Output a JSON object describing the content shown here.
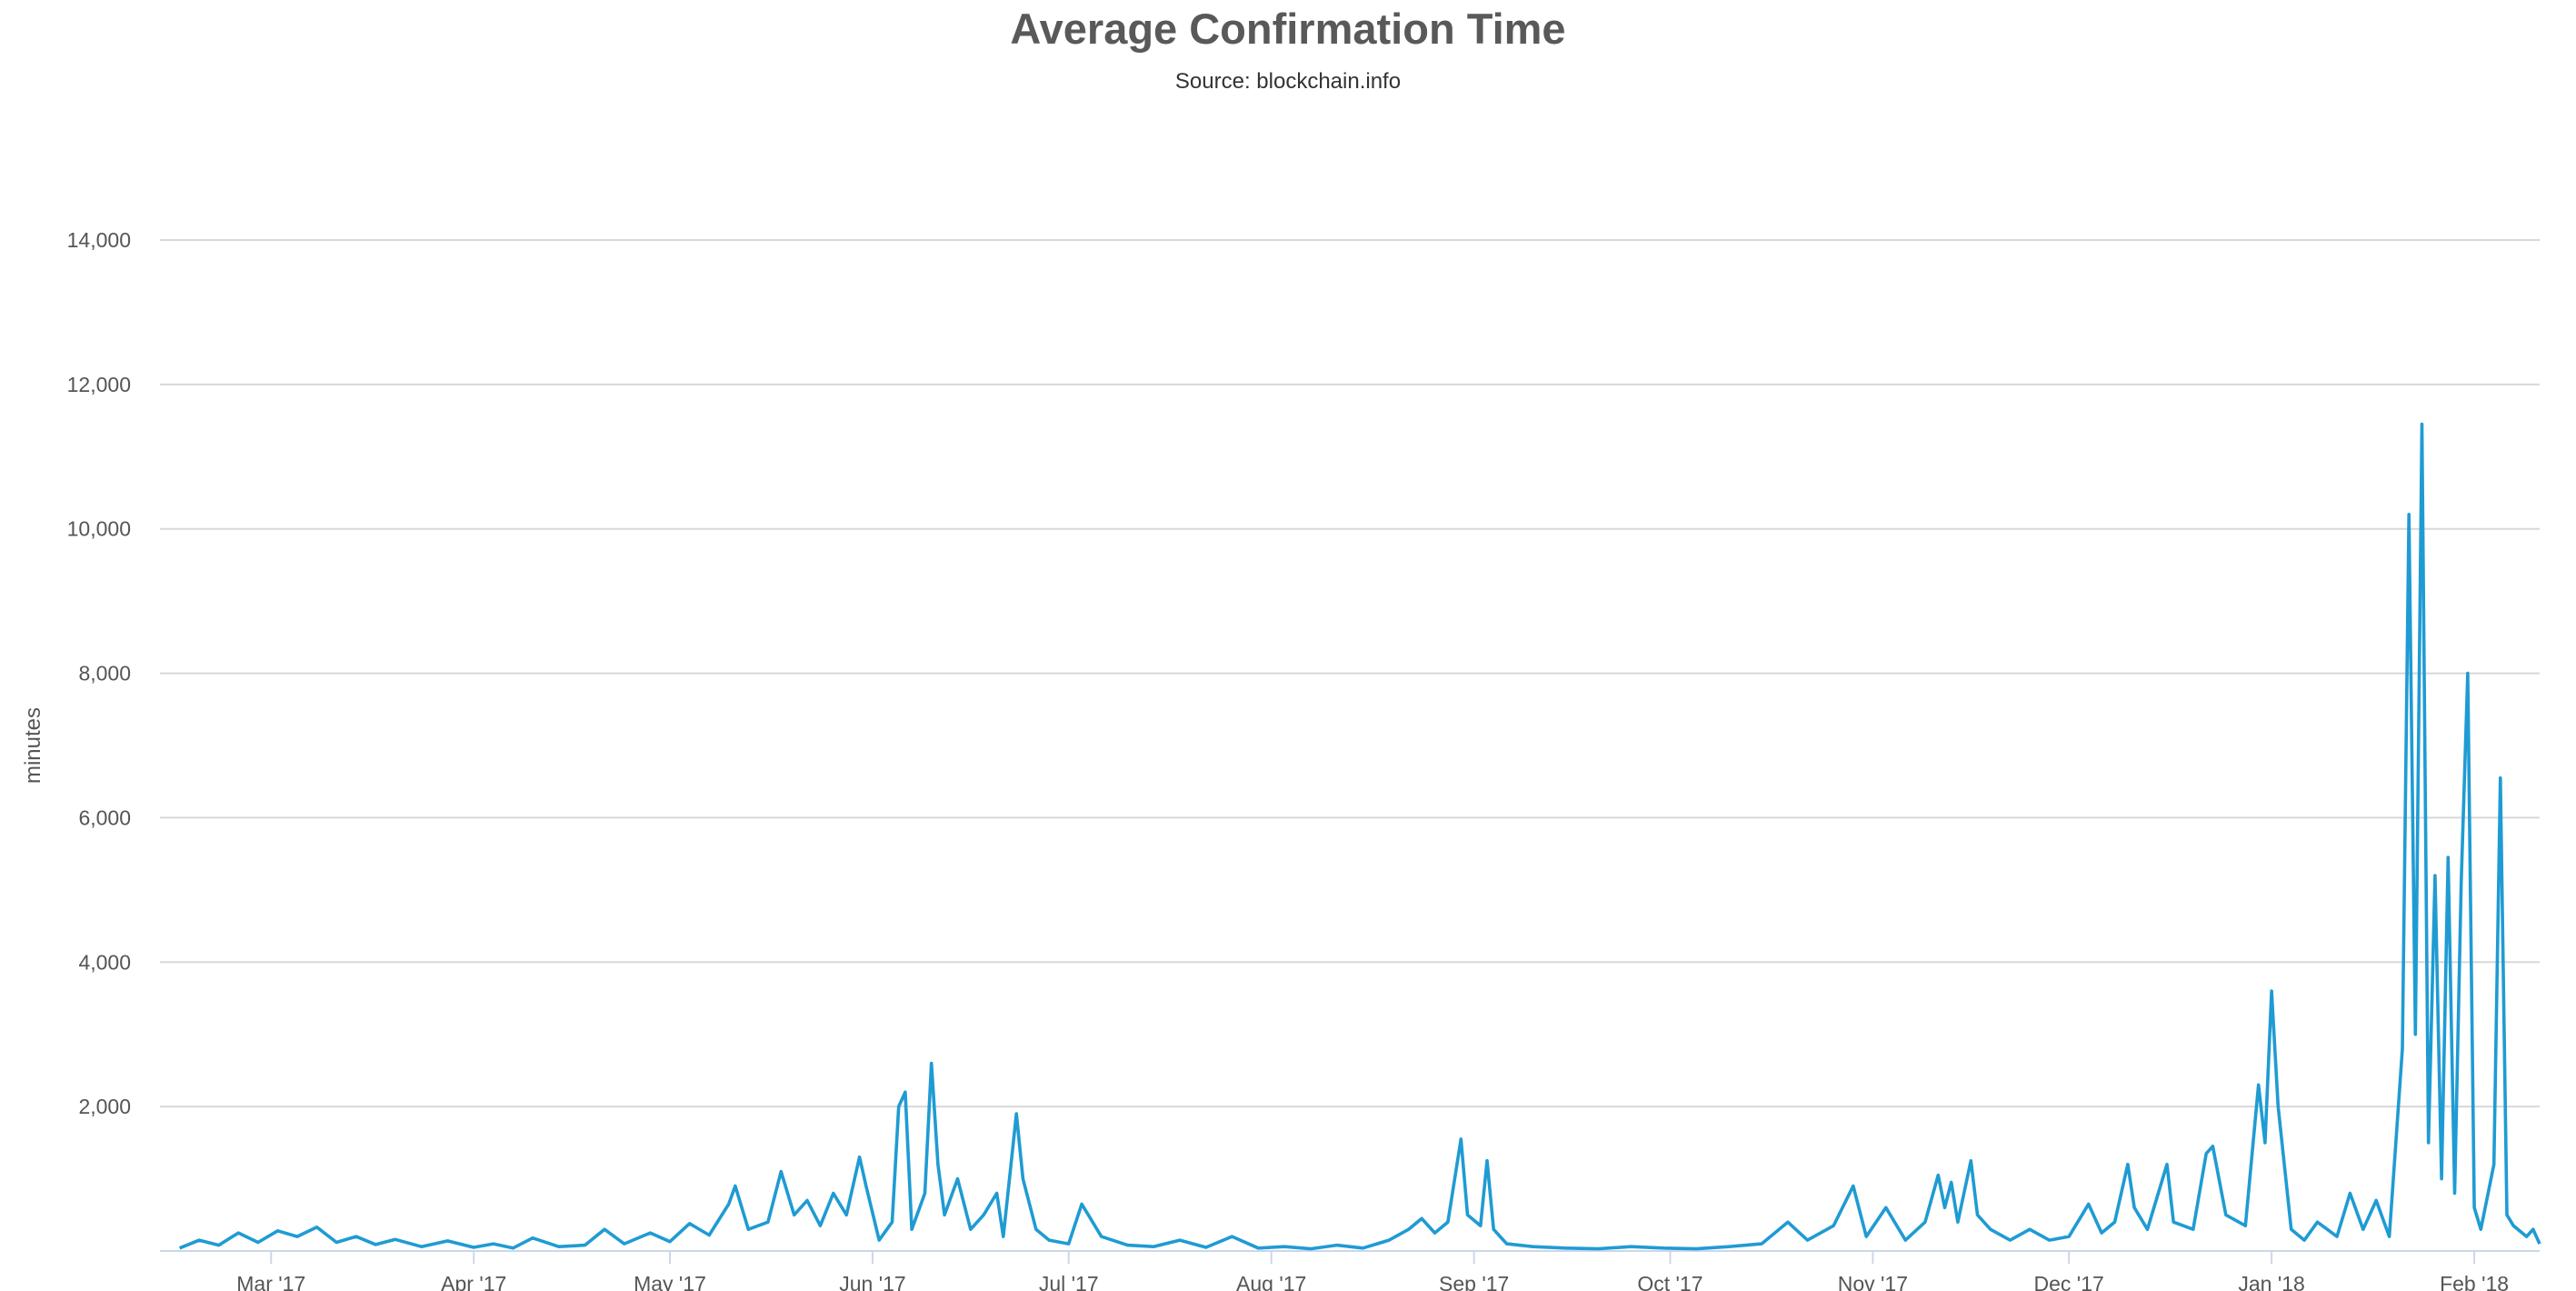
{
  "chart_data": {
    "type": "line",
    "title": "Average Confirmation Time",
    "subtitle": "Source: blockchain.info",
    "xlabel": "",
    "ylabel": "minutes",
    "ylim": [
      0,
      14000
    ],
    "xlim": [
      "2017-02-12",
      "2018-02-11"
    ],
    "grid": true,
    "legend": "none",
    "series_color": "#1f9bd3",
    "y_ticks": [
      {
        "value": 0,
        "label": ""
      },
      {
        "value": 2000,
        "label": "2,000"
      },
      {
        "value": 4000,
        "label": "4,000"
      },
      {
        "value": 6000,
        "label": "6,000"
      },
      {
        "value": 8000,
        "label": "8,000"
      },
      {
        "value": 10000,
        "label": "10,000"
      },
      {
        "value": 12000,
        "label": "12,000"
      },
      {
        "value": 14000,
        "label": "14,000"
      }
    ],
    "x_ticks": [
      {
        "date": "2017-03-01",
        "label": "Mar '17"
      },
      {
        "date": "2017-04-01",
        "label": "Apr '17"
      },
      {
        "date": "2017-05-01",
        "label": "May '17"
      },
      {
        "date": "2017-06-01",
        "label": "Jun '17"
      },
      {
        "date": "2017-07-01",
        "label": "Jul '17"
      },
      {
        "date": "2017-08-01",
        "label": "Aug '17"
      },
      {
        "date": "2017-09-01",
        "label": "Sep '17"
      },
      {
        "date": "2017-10-01",
        "label": "Oct '17"
      },
      {
        "date": "2017-11-01",
        "label": "Nov '17"
      },
      {
        "date": "2017-12-01",
        "label": "Dec '17"
      },
      {
        "date": "2018-01-01",
        "label": "Jan '18"
      },
      {
        "date": "2018-02-01",
        "label": "Feb '18"
      }
    ],
    "series": [
      {
        "points": [
          [
            "2017-02-15",
            40
          ],
          [
            "2017-02-18",
            150
          ],
          [
            "2017-02-21",
            80
          ],
          [
            "2017-02-24",
            250
          ],
          [
            "2017-02-27",
            120
          ],
          [
            "2017-03-02",
            280
          ],
          [
            "2017-03-05",
            200
          ],
          [
            "2017-03-08",
            330
          ],
          [
            "2017-03-11",
            120
          ],
          [
            "2017-03-14",
            200
          ],
          [
            "2017-03-17",
            90
          ],
          [
            "2017-03-20",
            160
          ],
          [
            "2017-03-24",
            60
          ],
          [
            "2017-03-28",
            140
          ],
          [
            "2017-04-01",
            50
          ],
          [
            "2017-04-04",
            100
          ],
          [
            "2017-04-07",
            40
          ],
          [
            "2017-04-10",
            180
          ],
          [
            "2017-04-14",
            60
          ],
          [
            "2017-04-18",
            80
          ],
          [
            "2017-04-21",
            300
          ],
          [
            "2017-04-24",
            100
          ],
          [
            "2017-04-28",
            250
          ],
          [
            "2017-05-01",
            130
          ],
          [
            "2017-05-04",
            380
          ],
          [
            "2017-05-07",
            220
          ],
          [
            "2017-05-10",
            650
          ],
          [
            "2017-05-11",
            900
          ],
          [
            "2017-05-13",
            300
          ],
          [
            "2017-05-16",
            400
          ],
          [
            "2017-05-18",
            1100
          ],
          [
            "2017-05-20",
            500
          ],
          [
            "2017-05-22",
            700
          ],
          [
            "2017-05-24",
            350
          ],
          [
            "2017-05-26",
            800
          ],
          [
            "2017-05-28",
            500
          ],
          [
            "2017-05-30",
            1300
          ],
          [
            "2017-05-31",
            900
          ],
          [
            "2017-06-02",
            150
          ],
          [
            "2017-06-04",
            400
          ],
          [
            "2017-06-05",
            2000
          ],
          [
            "2017-06-06",
            2200
          ],
          [
            "2017-06-07",
            300
          ],
          [
            "2017-06-09",
            800
          ],
          [
            "2017-06-10",
            2600
          ],
          [
            "2017-06-11",
            1200
          ],
          [
            "2017-06-12",
            500
          ],
          [
            "2017-06-14",
            1000
          ],
          [
            "2017-06-16",
            300
          ],
          [
            "2017-06-18",
            500
          ],
          [
            "2017-06-20",
            800
          ],
          [
            "2017-06-21",
            200
          ],
          [
            "2017-06-23",
            1900
          ],
          [
            "2017-06-24",
            1000
          ],
          [
            "2017-06-26",
            300
          ],
          [
            "2017-06-28",
            150
          ],
          [
            "2017-07-01",
            100
          ],
          [
            "2017-07-03",
            650
          ],
          [
            "2017-07-06",
            200
          ],
          [
            "2017-07-10",
            80
          ],
          [
            "2017-07-14",
            60
          ],
          [
            "2017-07-18",
            150
          ],
          [
            "2017-07-22",
            50
          ],
          [
            "2017-07-26",
            200
          ],
          [
            "2017-07-30",
            40
          ],
          [
            "2017-08-03",
            60
          ],
          [
            "2017-08-07",
            30
          ],
          [
            "2017-08-11",
            80
          ],
          [
            "2017-08-15",
            40
          ],
          [
            "2017-08-19",
            150
          ],
          [
            "2017-08-22",
            300
          ],
          [
            "2017-08-24",
            450
          ],
          [
            "2017-08-26",
            250
          ],
          [
            "2017-08-28",
            400
          ],
          [
            "2017-08-30",
            1550
          ],
          [
            "2017-08-31",
            500
          ],
          [
            "2017-09-02",
            350
          ],
          [
            "2017-09-03",
            1250
          ],
          [
            "2017-09-04",
            300
          ],
          [
            "2017-09-06",
            100
          ],
          [
            "2017-09-10",
            60
          ],
          [
            "2017-09-15",
            40
          ],
          [
            "2017-09-20",
            30
          ],
          [
            "2017-09-25",
            60
          ],
          [
            "2017-09-30",
            40
          ],
          [
            "2017-10-05",
            30
          ],
          [
            "2017-10-10",
            60
          ],
          [
            "2017-10-15",
            100
          ],
          [
            "2017-10-19",
            400
          ],
          [
            "2017-10-22",
            150
          ],
          [
            "2017-10-26",
            350
          ],
          [
            "2017-10-29",
            900
          ],
          [
            "2017-10-31",
            200
          ],
          [
            "2017-11-03",
            600
          ],
          [
            "2017-11-06",
            150
          ],
          [
            "2017-11-09",
            400
          ],
          [
            "2017-11-11",
            1050
          ],
          [
            "2017-11-12",
            600
          ],
          [
            "2017-11-13",
            950
          ],
          [
            "2017-11-14",
            400
          ],
          [
            "2017-11-16",
            1250
          ],
          [
            "2017-11-17",
            500
          ],
          [
            "2017-11-19",
            300
          ],
          [
            "2017-11-22",
            150
          ],
          [
            "2017-11-25",
            300
          ],
          [
            "2017-11-28",
            150
          ],
          [
            "2017-12-01",
            200
          ],
          [
            "2017-12-04",
            650
          ],
          [
            "2017-12-06",
            250
          ],
          [
            "2017-12-08",
            400
          ],
          [
            "2017-12-10",
            1200
          ],
          [
            "2017-12-11",
            600
          ],
          [
            "2017-12-13",
            300
          ],
          [
            "2017-12-16",
            1200
          ],
          [
            "2017-12-17",
            400
          ],
          [
            "2017-12-20",
            300
          ],
          [
            "2017-12-22",
            1350
          ],
          [
            "2017-12-23",
            1450
          ],
          [
            "2017-12-25",
            500
          ],
          [
            "2017-12-28",
            350
          ],
          [
            "2017-12-30",
            2300
          ],
          [
            "2017-12-31",
            1500
          ],
          [
            "2018-01-01",
            3600
          ],
          [
            "2018-01-02",
            2000
          ],
          [
            "2018-01-04",
            300
          ],
          [
            "2018-01-06",
            150
          ],
          [
            "2018-01-08",
            400
          ],
          [
            "2018-01-11",
            200
          ],
          [
            "2018-01-13",
            800
          ],
          [
            "2018-01-15",
            300
          ],
          [
            "2018-01-17",
            700
          ],
          [
            "2018-01-19",
            200
          ],
          [
            "2018-01-21",
            2800
          ],
          [
            "2018-01-22",
            10200
          ],
          [
            "2018-01-23",
            3000
          ],
          [
            "2018-01-24",
            11450
          ],
          [
            "2018-01-25",
            1500
          ],
          [
            "2018-01-26",
            5200
          ],
          [
            "2018-01-27",
            1000
          ],
          [
            "2018-01-28",
            5450
          ],
          [
            "2018-01-29",
            800
          ],
          [
            "2018-01-30",
            5100
          ],
          [
            "2018-01-31",
            8000
          ],
          [
            "2018-02-01",
            600
          ],
          [
            "2018-02-02",
            300
          ],
          [
            "2018-02-04",
            1200
          ],
          [
            "2018-02-05",
            6550
          ],
          [
            "2018-02-06",
            500
          ],
          [
            "2018-02-07",
            350
          ],
          [
            "2018-02-09",
            200
          ],
          [
            "2018-02-10",
            300
          ],
          [
            "2018-02-11",
            100
          ]
        ]
      }
    ]
  }
}
